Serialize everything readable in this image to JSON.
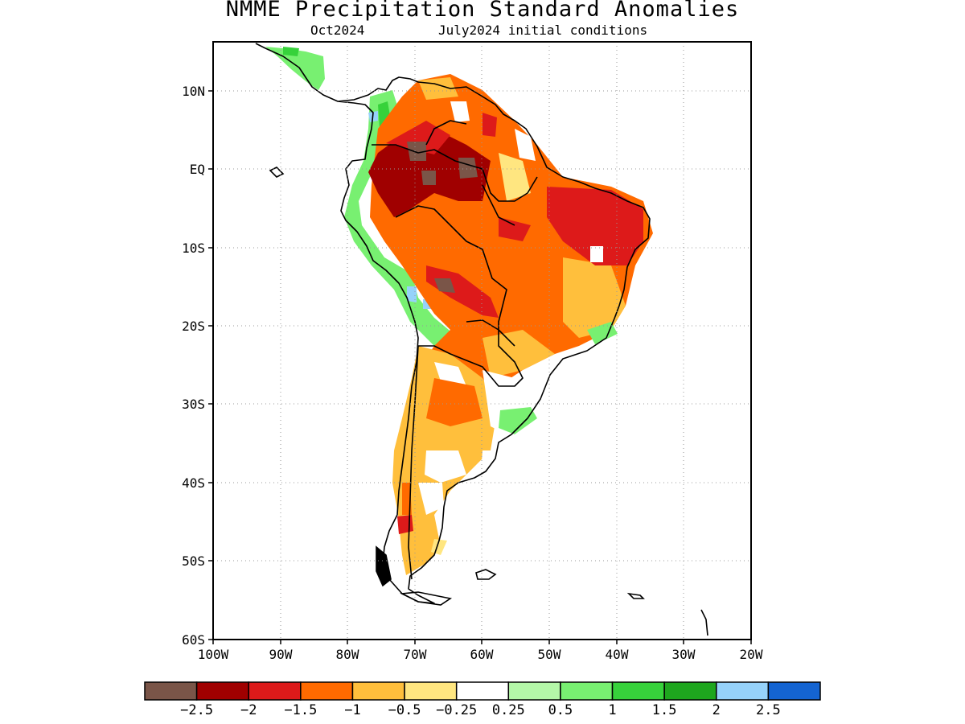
{
  "title": "NMME Precipitation Standard Anomalies",
  "subtitle_left": "Oct2024",
  "subtitle_right": "July2024 initial conditions",
  "map": {
    "lat_labels": [
      "10N",
      "EQ",
      "10S",
      "20S",
      "30S",
      "40S",
      "50S",
      "60S"
    ],
    "lon_labels": [
      "100W",
      "90W",
      "80W",
      "70W",
      "60W",
      "50W",
      "40W",
      "30W",
      "20W"
    ],
    "grid": "dotted"
  },
  "colorbar": {
    "colors": [
      "#7a5548",
      "#a00000",
      "#dd1a1a",
      "#ff6a00",
      "#ffbf3c",
      "#ffe680",
      "#ffffff",
      "#b4f7a8",
      "#78f071",
      "#37d23b",
      "#1ea61e",
      "#96d2fa",
      "#1464d2"
    ],
    "labels": [
      "−2.5",
      "−2",
      "−1.5",
      "−1",
      "−0.5",
      "−0.25",
      "0.25",
      "0.5",
      "1",
      "1.5",
      "2",
      "2.5"
    ]
  }
}
